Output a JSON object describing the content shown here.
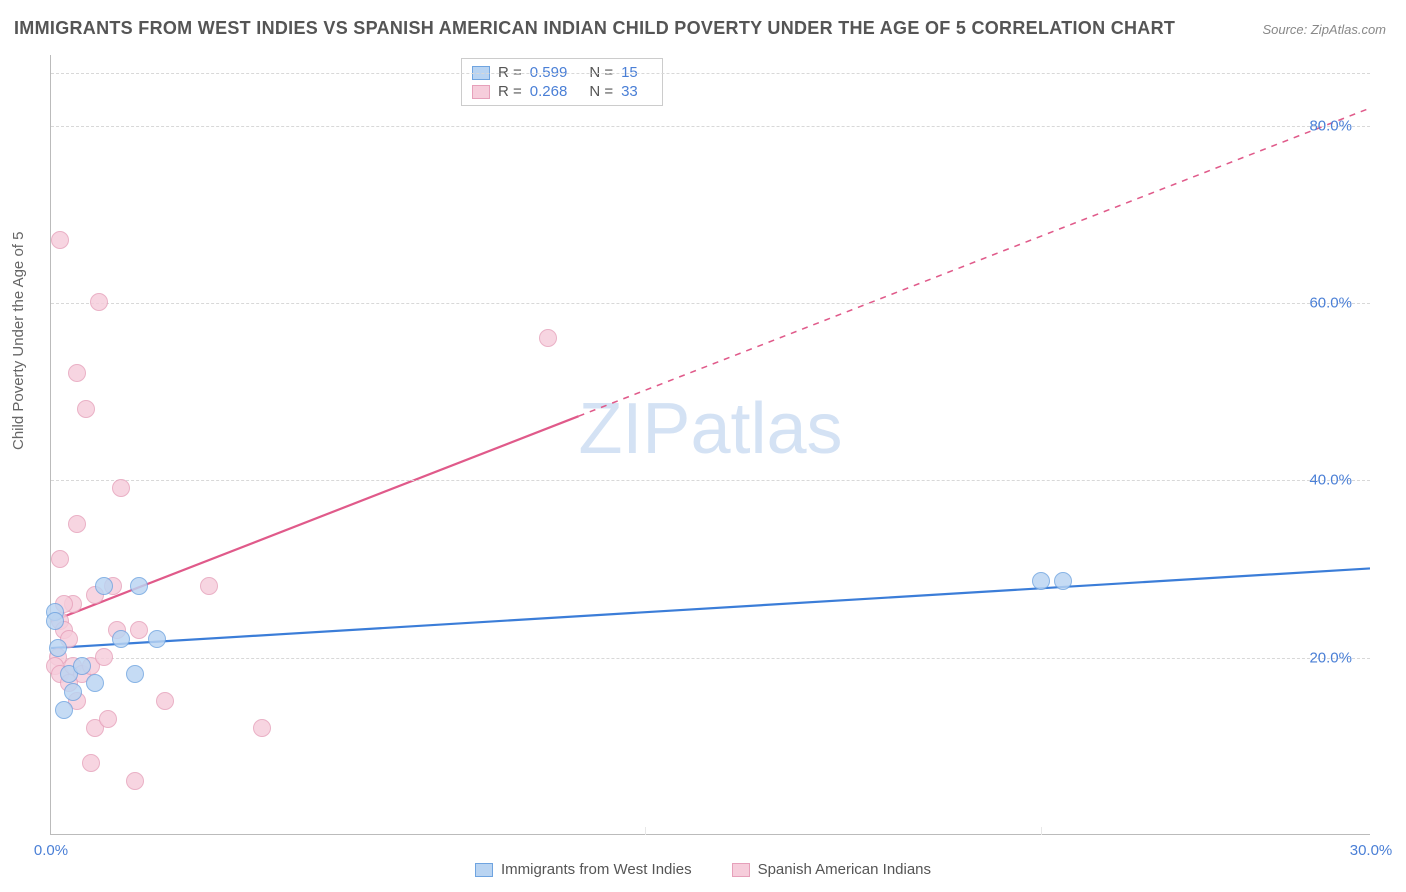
{
  "title": "IMMIGRANTS FROM WEST INDIES VS SPANISH AMERICAN INDIAN CHILD POVERTY UNDER THE AGE OF 5 CORRELATION CHART",
  "source": "Source: ZipAtlas.com",
  "y_axis_label": "Child Poverty Under the Age of 5",
  "watermark_a": "ZIP",
  "watermark_b": "atlas",
  "chart": {
    "type": "scatter",
    "xlim": [
      0,
      30
    ],
    "ylim": [
      0,
      88
    ],
    "x_ticks": [
      0,
      30
    ],
    "x_tick_labels": [
      "0.0%",
      "30.0%"
    ],
    "y_ticks": [
      20,
      40,
      60,
      80
    ],
    "y_tick_labels": [
      "20.0%",
      "40.0%",
      "60.0%",
      "80.0%"
    ],
    "grid_y": [
      20,
      40,
      60,
      80,
      86
    ],
    "grid_x": [
      13.5,
      22.5
    ],
    "background_color": "#ffffff",
    "grid_color": "#d8d8d8",
    "series": [
      {
        "name": "Immigrants from West Indies",
        "color_fill": "#b9d4f2",
        "color_stroke": "#6fa4e0",
        "marker_radius": 9,
        "r_value": "0.599",
        "n_value": "15",
        "trend": {
          "x1": 0,
          "y1": 21,
          "x2": 30,
          "y2": 30,
          "color": "#3b7dd8",
          "width": 2.2,
          "dashed_after_x": null
        },
        "points": [
          [
            0.1,
            25
          ],
          [
            0.1,
            24
          ],
          [
            0.15,
            21
          ],
          [
            0.4,
            18
          ],
          [
            0.7,
            19
          ],
          [
            0.5,
            16
          ],
          [
            1.0,
            17
          ],
          [
            1.2,
            28
          ],
          [
            1.6,
            22
          ],
          [
            1.9,
            18
          ],
          [
            2.4,
            22
          ],
          [
            2.0,
            28
          ],
          [
            22.5,
            28.5
          ],
          [
            23.0,
            28.5
          ],
          [
            0.3,
            14
          ]
        ]
      },
      {
        "name": "Spanish American Indians",
        "color_fill": "#f6cddb",
        "color_stroke": "#e6a0ba",
        "marker_radius": 9,
        "r_value": "0.268",
        "n_value": "33",
        "trend": {
          "x1": 0,
          "y1": 24,
          "x2": 30,
          "y2": 82,
          "color": "#e05a8a",
          "width": 2.2,
          "dashed_after_x": 12
        },
        "points": [
          [
            0.2,
            67
          ],
          [
            1.1,
            60
          ],
          [
            0.6,
            52
          ],
          [
            0.8,
            48
          ],
          [
            11.3,
            56
          ],
          [
            1.6,
            39
          ],
          [
            0.6,
            35
          ],
          [
            0.2,
            31
          ],
          [
            3.6,
            28
          ],
          [
            0.5,
            26
          ],
          [
            1.0,
            27
          ],
          [
            1.4,
            28
          ],
          [
            0.2,
            24
          ],
          [
            0.3,
            23
          ],
          [
            0.4,
            22
          ],
          [
            0.15,
            20
          ],
          [
            0.1,
            19
          ],
          [
            0.2,
            18
          ],
          [
            0.5,
            19
          ],
          [
            0.7,
            18
          ],
          [
            0.9,
            19
          ],
          [
            1.2,
            20
          ],
          [
            1.5,
            23
          ],
          [
            0.6,
            15
          ],
          [
            1.0,
            12
          ],
          [
            1.3,
            13
          ],
          [
            2.6,
            15
          ],
          [
            4.8,
            12
          ],
          [
            0.9,
            8
          ],
          [
            1.9,
            6
          ],
          [
            2.0,
            23
          ],
          [
            0.3,
            26
          ],
          [
            0.4,
            17
          ]
        ]
      }
    ]
  },
  "legend_stats": {
    "r_label": "R =",
    "n_label": "N ="
  },
  "bottom_legend": {
    "items": [
      "Immigrants from West Indies",
      "Spanish American Indians"
    ]
  }
}
